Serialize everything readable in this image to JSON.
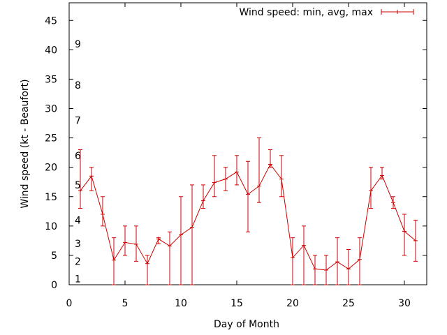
{
  "chart_data": {
    "type": "line",
    "title": "",
    "xlabel": "Day of Month",
    "ylabel": "Wind speed (kt - Beaufort)",
    "xlim": [
      0,
      32
    ],
    "ylim": [
      0,
      48
    ],
    "x_ticks": [
      0,
      5,
      10,
      15,
      20,
      25,
      30
    ],
    "y_ticks": [
      0,
      5,
      10,
      15,
      20,
      25,
      30,
      35,
      40,
      45
    ],
    "grid": false,
    "legend_position": "top-right",
    "beaufort_labels": [
      {
        "label": "1",
        "value": 1
      },
      {
        "label": "2",
        "value": 4
      },
      {
        "label": "3",
        "value": 7
      },
      {
        "label": "4",
        "value": 11
      },
      {
        "label": "5",
        "value": 17
      },
      {
        "label": "6",
        "value": 22
      },
      {
        "label": "7",
        "value": 28
      },
      {
        "label": "8",
        "value": 34
      },
      {
        "label": "9",
        "value": 41
      }
    ],
    "series": [
      {
        "name": "Wind speed: min, avg, max",
        "color": "#cc0000",
        "x": [
          1,
          2,
          3,
          4,
          5,
          6,
          7,
          8,
          9,
          10,
          11,
          12,
          13,
          14,
          15,
          16,
          17,
          18,
          19,
          20,
          21,
          22,
          23,
          24,
          25,
          26,
          27,
          28,
          29,
          30,
          31
        ],
        "avg": [
          16,
          18.5,
          12,
          4.2,
          7.2,
          6.9,
          3.6,
          7.8,
          6.6,
          8.5,
          9.8,
          14.3,
          17.4,
          18,
          19.2,
          15.4,
          16.8,
          20.5,
          18,
          4.6,
          6.7,
          2.7,
          2.5,
          3.9,
          2.7,
          4.3,
          16,
          18.6,
          14,
          9.1,
          7.5
        ],
        "min": [
          13,
          16,
          10,
          0,
          5,
          4,
          0,
          7,
          0,
          0,
          0,
          13,
          15,
          16,
          17,
          9,
          14,
          20,
          15,
          0,
          0,
          0,
          0,
          0,
          0,
          0,
          13,
          18,
          13,
          5,
          4
        ],
        "max": [
          23,
          20,
          15,
          8,
          10,
          10,
          5,
          8,
          9,
          15,
          17,
          17,
          22,
          20,
          22,
          21,
          25,
          23,
          22,
          8,
          10,
          5,
          5,
          8,
          6,
          8,
          20,
          20,
          15,
          12,
          11
        ]
      }
    ]
  }
}
